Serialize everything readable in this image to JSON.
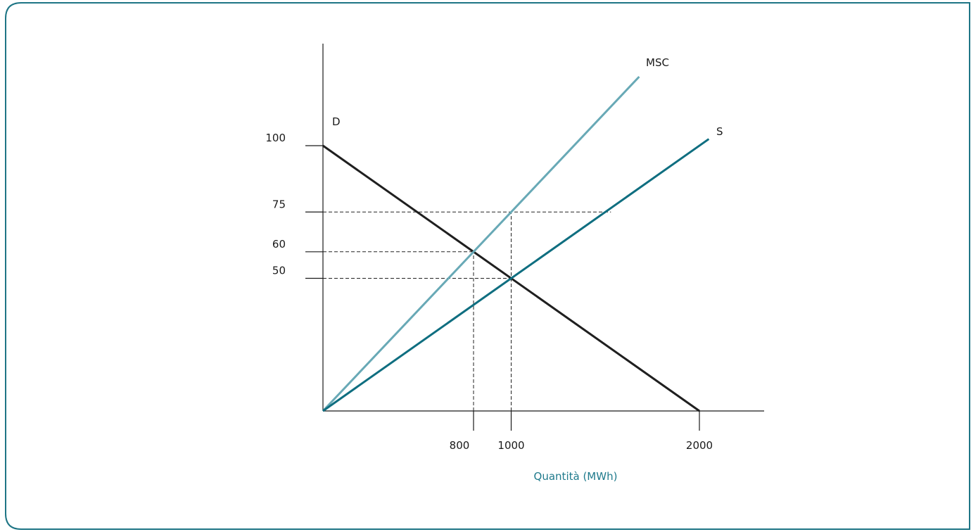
{
  "chart_data": {
    "type": "line",
    "title": "",
    "xlabel": "Quantità (MWh)",
    "ylabel": "",
    "xlim": [
      0,
      2350
    ],
    "ylim": [
      0,
      135
    ],
    "x_ticks": [
      800,
      1000,
      2000
    ],
    "y_ticks": [
      50,
      60,
      75,
      100
    ],
    "x_tick_labels": [
      "800",
      "1000",
      "2000"
    ],
    "y_tick_labels": [
      "50",
      "60",
      "75",
      "100"
    ],
    "grid": false,
    "legend": "none",
    "series": [
      {
        "name": "D",
        "color": "#1f1f1f",
        "points": [
          [
            0,
            100
          ],
          [
            2000,
            0
          ]
        ]
      },
      {
        "name": "MSC",
        "color": "#68a9b6",
        "points": [
          [
            0,
            0
          ],
          [
            1680,
            126
          ]
        ]
      },
      {
        "name": "S",
        "color": "#0f6e80",
        "points": [
          [
            0,
            0
          ],
          [
            2050,
            102.5
          ]
        ]
      }
    ],
    "reference_lines": [
      {
        "y": 75,
        "x_end": 1530
      },
      {
        "y": 60,
        "x_end": 800
      },
      {
        "y": 50,
        "x_end": 1000
      },
      {
        "x": 800,
        "y_end": 60
      },
      {
        "x": 1000,
        "y_end": 75
      }
    ]
  },
  "colors": {
    "frame": "#1e7585",
    "axis": "#1a1a1a",
    "axis_title": "#1f7a8c",
    "dashed": "#222222"
  }
}
